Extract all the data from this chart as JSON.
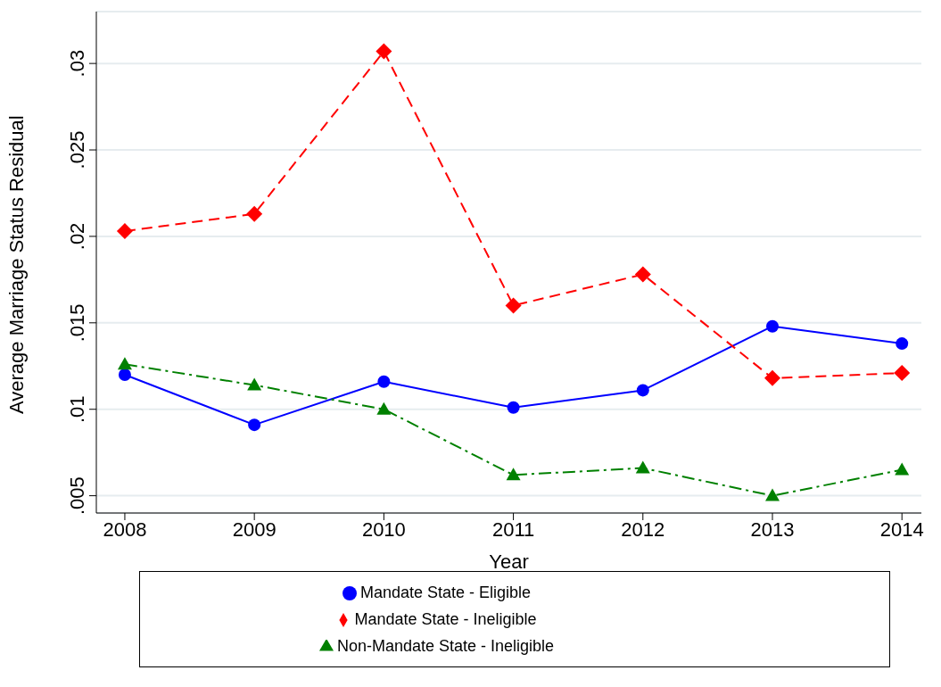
{
  "chart_data": {
    "type": "line",
    "xlabel": "Year",
    "ylabel": "Average Marriage Status Residual",
    "x": [
      2008,
      2009,
      2010,
      2011,
      2012,
      2013,
      2014
    ],
    "xlim": [
      2007.78,
      2014.15
    ],
    "xticks": [
      2008,
      2009,
      2010,
      2011,
      2012,
      2013,
      2014
    ],
    "ylim": [
      0.004,
      0.033
    ],
    "yticks": [
      {
        "value": 0.005,
        "label": ".005"
      },
      {
        "value": 0.01,
        "label": ".01"
      },
      {
        "value": 0.015,
        "label": ".015"
      },
      {
        "value": 0.02,
        "label": ".02"
      },
      {
        "value": 0.025,
        "label": ".025"
      },
      {
        "value": 0.03,
        "label": ".03"
      }
    ],
    "grid": "y",
    "legend": "bottom",
    "series": [
      {
        "name": "Mandate State - Eligible",
        "color": "#0000ff",
        "marker": "circle",
        "line_style": "solid",
        "values": [
          0.012,
          0.0091,
          0.0116,
          0.0101,
          0.0111,
          0.0148,
          0.0138
        ]
      },
      {
        "name": "Mandate State - Ineligible",
        "color": "#ff0000",
        "marker": "diamond",
        "line_style": "dashed",
        "values": [
          0.0203,
          0.0213,
          0.0307,
          0.016,
          0.0178,
          0.0118,
          0.0121
        ]
      },
      {
        "name": "Non-Mandate State - Ineligible",
        "color": "#008000",
        "marker": "triangle",
        "line_style": "dashdot",
        "values": [
          0.0126,
          0.0114,
          0.01,
          0.0062,
          0.0066,
          0.005,
          0.0065
        ]
      }
    ]
  }
}
